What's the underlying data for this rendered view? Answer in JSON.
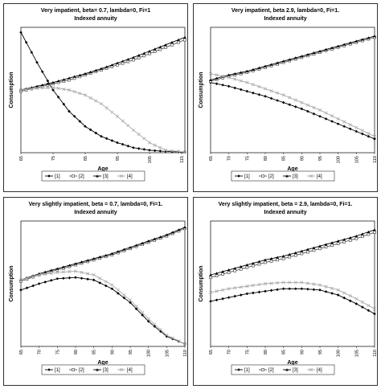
{
  "chart_data": [
    {
      "type": "line",
      "title": "Very impatient, beta= 0.7, lambda=0, Fi=1",
      "subtitle": "Indexed annuity",
      "xlabel": "Age",
      "ylabel": "Consumption",
      "x_ticks": [
        "65",
        "75",
        "85",
        "95",
        "105",
        "115"
      ],
      "x_tick_rotation": "vertical",
      "xlim": [
        65,
        116
      ],
      "ylim": [
        0,
        100
      ],
      "grid": false,
      "y_tick_labels": false,
      "legend_position": "bottom",
      "series": [
        {
          "name": "[1]",
          "marker": "diamond-filled",
          "color": "#000000",
          "x": [
            65,
            70,
            75,
            80,
            85,
            90,
            95,
            100,
            105,
            110,
            116
          ],
          "y": [
            96,
            72,
            50,
            33,
            21,
            13,
            8,
            4,
            2,
            1,
            0.5
          ]
        },
        {
          "name": "[2]",
          "marker": "square-open",
          "color": "#555555",
          "x": [
            65,
            70,
            75,
            80,
            85,
            90,
            95,
            100,
            105,
            110,
            116
          ],
          "y": [
            49,
            52,
            55,
            58,
            62,
            66,
            70,
            74,
            79,
            84,
            90
          ]
        },
        {
          "name": "[3]",
          "marker": "triangle-filled",
          "color": "#000000",
          "x": [
            65,
            70,
            75,
            80,
            85,
            90,
            95,
            100,
            105,
            110,
            116
          ],
          "y": [
            50,
            53,
            56,
            59.5,
            63,
            67,
            71.5,
            76,
            81,
            86,
            92
          ]
        },
        {
          "name": "[4]",
          "marker": "x",
          "color": "#aaaaaa",
          "x": [
            65,
            70,
            75,
            80,
            85,
            90,
            95,
            100,
            105,
            110,
            116
          ],
          "y": [
            50,
            51.5,
            52,
            50,
            46,
            39,
            29,
            18,
            8,
            2,
            0.5
          ]
        }
      ]
    },
    {
      "type": "line",
      "title": "Very impatient, beta 2.9, lambda=0, Fi=1.",
      "subtitle": "Indexed annuity",
      "xlabel": "Age",
      "ylabel": "Consumption",
      "x_ticks": [
        "65",
        "70",
        "75",
        "80",
        "85",
        "90",
        "95",
        "100",
        "105",
        "110"
      ],
      "x_tick_rotation": "vertical",
      "xlim": [
        65,
        110
      ],
      "ylim": [
        0,
        100
      ],
      "grid": false,
      "y_tick_labels": false,
      "legend_position": "bottom",
      "series": [
        {
          "name": "[1]",
          "marker": "diamond-filled",
          "color": "#000000",
          "x": [
            65,
            70,
            75,
            80,
            85,
            90,
            95,
            100,
            105,
            110
          ],
          "y": [
            56,
            53,
            49,
            45,
            40,
            35,
            29,
            23,
            17,
            11
          ]
        },
        {
          "name": "[2]",
          "marker": "square-open",
          "color": "#555555",
          "x": [
            65,
            70,
            75,
            80,
            85,
            90,
            95,
            100,
            105,
            110
          ],
          "y": [
            57,
            61,
            64,
            68,
            72,
            76,
            80,
            84,
            88,
            92
          ]
        },
        {
          "name": "[3]",
          "marker": "triangle-filled",
          "color": "#000000",
          "x": [
            65,
            70,
            75,
            80,
            85,
            90,
            95,
            100,
            105,
            110
          ],
          "y": [
            58,
            62,
            65,
            69,
            73,
            77,
            81,
            85,
            89,
            93
          ]
        },
        {
          "name": "[4]",
          "marker": "x",
          "color": "#aaaaaa",
          "x": [
            65,
            70,
            75,
            80,
            85,
            90,
            95,
            100,
            105,
            110
          ],
          "y": [
            63,
            60,
            56,
            51,
            46,
            40,
            34,
            27,
            20,
            13
          ]
        }
      ]
    },
    {
      "type": "line",
      "title": "Very slightly impatient, beta = 0.7, lambda=0, Fi=1.",
      "subtitle": "Indexed annuity",
      "xlabel": "Age",
      "ylabel": "Consumption",
      "x_ticks": [
        "65",
        "70",
        "75",
        "80",
        "85",
        "90",
        "95",
        "100",
        "105",
        "110"
      ],
      "x_tick_rotation": "vertical",
      "xlim": [
        65,
        110
      ],
      "ylim": [
        0,
        100
      ],
      "grid": false,
      "y_tick_labels": false,
      "legend_position": "bottom",
      "series": [
        {
          "name": "[1]",
          "marker": "diamond-filled",
          "color": "#000000",
          "x": [
            65,
            70,
            75,
            80,
            85,
            90,
            95,
            100,
            105,
            110
          ],
          "y": [
            45,
            50,
            54,
            55,
            53,
            46,
            35,
            20,
            8,
            2
          ]
        },
        {
          "name": "[2]",
          "marker": "square-open",
          "color": "#555555",
          "x": [
            65,
            70,
            75,
            80,
            85,
            90,
            95,
            100,
            105,
            110
          ],
          "y": [
            52,
            57,
            61,
            65,
            69,
            73,
            78,
            83,
            88,
            94
          ]
        },
        {
          "name": "[3]",
          "marker": "triangle-filled",
          "color": "#000000",
          "x": [
            65,
            70,
            75,
            80,
            85,
            90,
            95,
            100,
            105,
            110
          ],
          "y": [
            53,
            58,
            62,
            66,
            70,
            74,
            79,
            84,
            89,
            95
          ]
        },
        {
          "name": "[4]",
          "marker": "x",
          "color": "#aaaaaa",
          "x": [
            65,
            70,
            75,
            80,
            85,
            90,
            95,
            100,
            105,
            110
          ],
          "y": [
            53,
            57,
            59,
            60,
            57,
            49,
            37,
            22,
            9,
            2
          ]
        }
      ]
    },
    {
      "type": "line",
      "title": "Very slightly impatient, beta = 2.9, lambda=0, Fi=1.",
      "subtitle": "Indexed annuity",
      "xlabel": "Age",
      "ylabel": "Consumption",
      "x_ticks": [
        "65",
        "70",
        "75",
        "80",
        "85",
        "90",
        "95",
        "100",
        "105",
        "110"
      ],
      "x_tick_rotation": "vertical",
      "xlim": [
        65,
        110
      ],
      "ylim": [
        0,
        100
      ],
      "grid": false,
      "y_tick_labels": false,
      "legend_position": "bottom",
      "series": [
        {
          "name": "[1]",
          "marker": "diamond-filled",
          "color": "#000000",
          "x": [
            65,
            70,
            75,
            80,
            85,
            90,
            95,
            100,
            105,
            110
          ],
          "y": [
            36,
            39,
            42,
            44,
            46,
            46,
            45,
            41,
            34,
            26
          ]
        },
        {
          "name": "[2]",
          "marker": "square-open",
          "color": "#555555",
          "x": [
            65,
            70,
            75,
            80,
            85,
            90,
            95,
            100,
            105,
            110
          ],
          "y": [
            55,
            59,
            63,
            67,
            70,
            74,
            78,
            82,
            86,
            91
          ]
        },
        {
          "name": "[3]",
          "marker": "triangle-filled",
          "color": "#000000",
          "x": [
            65,
            70,
            75,
            80,
            85,
            90,
            95,
            100,
            105,
            110
          ],
          "y": [
            57,
            61,
            65,
            69,
            72,
            76,
            80,
            84,
            88,
            93
          ]
        },
        {
          "name": "[4]",
          "marker": "x",
          "color": "#aaaaaa",
          "x": [
            65,
            70,
            75,
            80,
            85,
            90,
            95,
            100,
            105,
            110
          ],
          "y": [
            43,
            46,
            48,
            50,
            51,
            51,
            49,
            45,
            38,
            30
          ]
        }
      ]
    }
  ]
}
